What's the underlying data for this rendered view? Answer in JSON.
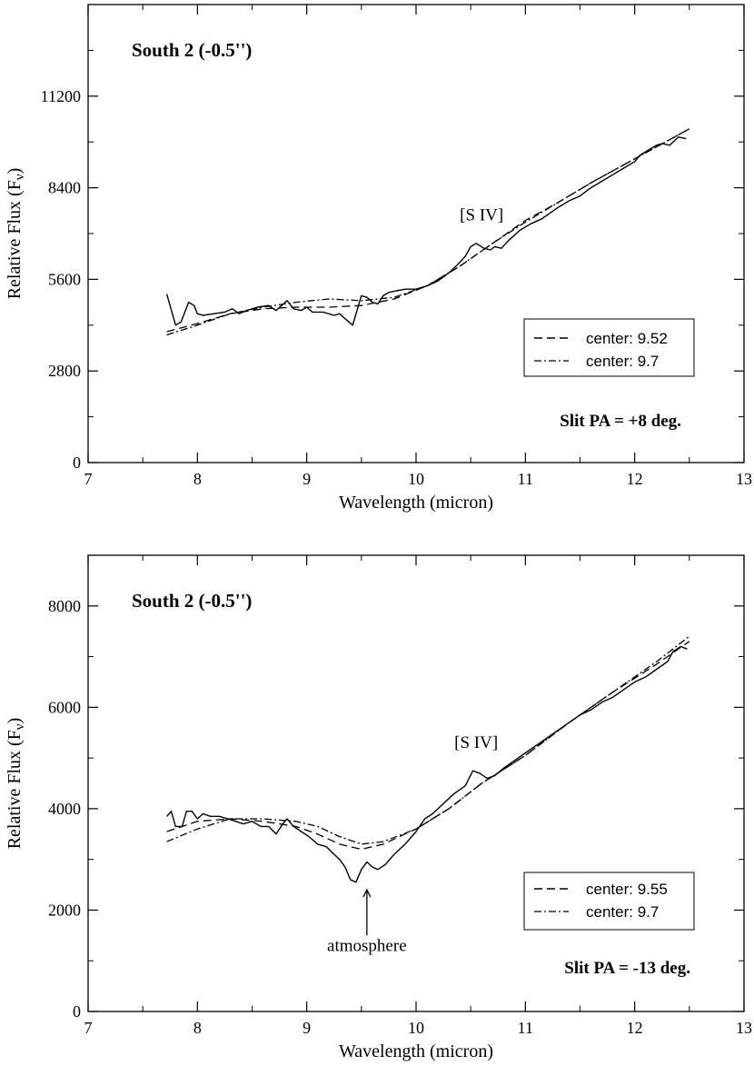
{
  "chart_data": [
    {
      "type": "line",
      "title": "South 2 (-0.5'')",
      "xlabel": "Wavelength (micron)",
      "ylabel": "Relative Flux (F",
      "ylabel_sub": "ν",
      "ylabel_close": ")",
      "xlim": [
        7,
        13
      ],
      "ylim": [
        0,
        14000
      ],
      "xticks": [
        7,
        8,
        9,
        10,
        11,
        12,
        13
      ],
      "yticks": [
        0,
        2800,
        5600,
        8400,
        11200
      ],
      "annotations": {
        "slit_pa": "Slit PA = +8 deg.",
        "line_label": "[S IV]",
        "line_label_pos": [
          10.6,
          7400
        ]
      },
      "legend": [
        {
          "label": "center: 9.52",
          "style": "dashed"
        },
        {
          "label": "center: 9.7",
          "style": "dashdot"
        }
      ],
      "series": [
        {
          "name": "observed",
          "style": "solid",
          "x": [
            7.72,
            7.8,
            7.85,
            7.92,
            7.97,
            8.0,
            8.05,
            8.15,
            8.25,
            8.32,
            8.38,
            8.45,
            8.55,
            8.65,
            8.72,
            8.82,
            8.88,
            8.95,
            9.0,
            9.05,
            9.15,
            9.25,
            9.3,
            9.35,
            9.42,
            9.5,
            9.55,
            9.6,
            9.65,
            9.7,
            9.75,
            9.82,
            9.9,
            10.0,
            10.1,
            10.2,
            10.3,
            10.38,
            10.45,
            10.5,
            10.55,
            10.62,
            10.68,
            10.72,
            10.78,
            10.85,
            10.95,
            11.05,
            11.15,
            11.3,
            11.4,
            11.5,
            11.6,
            11.7,
            11.8,
            11.9,
            12.0,
            12.05,
            12.1,
            12.2,
            12.25,
            12.32,
            12.4,
            12.47
          ],
          "y": [
            5150,
            4200,
            4300,
            4900,
            4800,
            4550,
            4500,
            4550,
            4600,
            4700,
            4550,
            4650,
            4750,
            4800,
            4650,
            4950,
            4700,
            4650,
            4750,
            4600,
            4600,
            4500,
            4550,
            4400,
            4200,
            5100,
            5050,
            4900,
            4850,
            5100,
            5200,
            5250,
            5300,
            5300,
            5400,
            5550,
            5800,
            6050,
            6300,
            6600,
            6700,
            6550,
            6500,
            6600,
            6550,
            6800,
            7100,
            7300,
            7450,
            7800,
            8000,
            8150,
            8400,
            8600,
            8800,
            9000,
            9200,
            9400,
            9500,
            9700,
            9750,
            9700,
            9950,
            9900
          ]
        },
        {
          "name": "center: 9.52",
          "style": "dashed",
          "x": [
            7.72,
            8.0,
            8.3,
            8.6,
            8.9,
            9.2,
            9.5,
            9.8,
            10.1,
            10.4,
            10.7,
            11.0,
            11.3,
            11.6,
            11.9,
            12.2,
            12.5
          ],
          "y": [
            4000,
            4250,
            4550,
            4700,
            4750,
            4750,
            4800,
            5000,
            5400,
            6000,
            6700,
            7400,
            7950,
            8550,
            9100,
            9650,
            10200
          ]
        },
        {
          "name": "center: 9.7",
          "style": "dashdot",
          "x": [
            7.72,
            8.0,
            8.3,
            8.6,
            8.9,
            9.2,
            9.5,
            9.8,
            10.1,
            10.4,
            10.7,
            11.0,
            11.3,
            11.6,
            11.9,
            12.2,
            12.5
          ],
          "y": [
            3900,
            4200,
            4550,
            4750,
            4900,
            5000,
            4950,
            5050,
            5400,
            6000,
            6700,
            7350,
            7950,
            8550,
            9100,
            9650,
            10200
          ]
        }
      ]
    },
    {
      "type": "line",
      "title": "South 2 (-0.5'')",
      "xlabel": "Wavelength (micron)",
      "ylabel": "Relative Flux (F",
      "ylabel_sub": "ν",
      "ylabel_close": ")",
      "xlim": [
        7,
        13
      ],
      "ylim": [
        0,
        9000
      ],
      "xticks": [
        7,
        8,
        9,
        10,
        11,
        12,
        13
      ],
      "yticks": [
        0,
        2000,
        4000,
        6000,
        8000
      ],
      "annotations": {
        "slit_pa": "Slit PA = -13 deg.",
        "line_label": "[S IV]",
        "line_label_pos": [
          10.55,
          5200
        ],
        "arrow_label": "atmosphere",
        "arrow_x": 9.55,
        "arrow_tail_y": 1500,
        "arrow_head_y": 2400,
        "arrow_label_y": 1300
      },
      "legend": [
        {
          "label": "center: 9.55",
          "style": "dashed"
        },
        {
          "label": "center: 9.7",
          "style": "dashdot"
        }
      ],
      "series": [
        {
          "name": "observed",
          "style": "solid",
          "x": [
            7.72,
            7.76,
            7.8,
            7.86,
            7.9,
            7.95,
            8.0,
            8.05,
            8.12,
            8.2,
            8.28,
            8.35,
            8.42,
            8.5,
            8.58,
            8.65,
            8.72,
            8.78,
            8.82,
            8.88,
            8.95,
            9.02,
            9.1,
            9.18,
            9.25,
            9.3,
            9.35,
            9.4,
            9.45,
            9.5,
            9.55,
            9.6,
            9.65,
            9.72,
            9.8,
            9.9,
            10.0,
            10.08,
            10.15,
            10.25,
            10.35,
            10.45,
            10.52,
            10.58,
            10.65,
            10.72,
            10.8,
            10.9,
            11.0,
            11.1,
            11.2,
            11.3,
            11.4,
            11.5,
            11.6,
            11.7,
            11.8,
            11.9,
            12.0,
            12.1,
            12.2,
            12.3,
            12.35,
            12.42,
            12.48
          ],
          "y": [
            3850,
            3950,
            3650,
            3650,
            3950,
            3950,
            3800,
            3900,
            3850,
            3850,
            3800,
            3750,
            3700,
            3750,
            3650,
            3650,
            3500,
            3700,
            3800,
            3650,
            3550,
            3450,
            3300,
            3250,
            3100,
            3000,
            2850,
            2600,
            2550,
            2800,
            2950,
            2850,
            2800,
            2900,
            3100,
            3300,
            3550,
            3800,
            3900,
            4100,
            4300,
            4450,
            4750,
            4700,
            4600,
            4650,
            4800,
            4950,
            5100,
            5250,
            5400,
            5550,
            5700,
            5850,
            5950,
            6100,
            6200,
            6350,
            6500,
            6600,
            6750,
            6900,
            7100,
            7200,
            7150
          ]
        },
        {
          "name": "center: 9.55",
          "style": "dashed",
          "x": [
            7.72,
            8.0,
            8.3,
            8.6,
            8.9,
            9.1,
            9.3,
            9.5,
            9.7,
            10.0,
            10.3,
            10.6,
            11.0,
            11.4,
            11.8,
            12.2,
            12.5
          ],
          "y": [
            3550,
            3750,
            3800,
            3750,
            3650,
            3500,
            3300,
            3200,
            3300,
            3600,
            4000,
            4500,
            5050,
            5700,
            6300,
            6850,
            7300
          ]
        },
        {
          "name": "center: 9.7",
          "style": "dashdot",
          "x": [
            7.72,
            8.0,
            8.3,
            8.6,
            8.9,
            9.1,
            9.3,
            9.5,
            9.7,
            10.0,
            10.3,
            10.6,
            11.0,
            11.4,
            11.8,
            12.2,
            12.5
          ],
          "y": [
            3350,
            3600,
            3800,
            3800,
            3750,
            3650,
            3450,
            3300,
            3350,
            3600,
            4000,
            4500,
            5050,
            5700,
            6300,
            6900,
            7400
          ]
        }
      ]
    }
  ]
}
